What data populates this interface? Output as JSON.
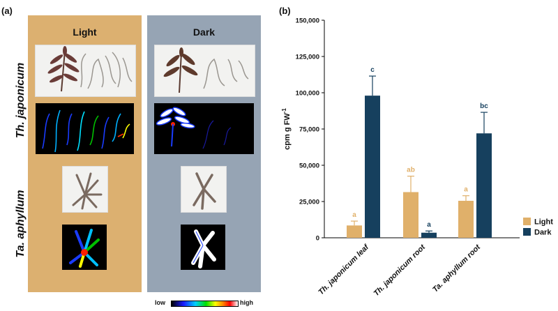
{
  "panel_a": {
    "label": "(a)",
    "columns": {
      "light": "Light",
      "dark": "Dark"
    },
    "species": [
      "Th. japonicum",
      "Ta. aphyllum"
    ],
    "scale": {
      "low": "low",
      "high": "high"
    },
    "colors": {
      "light_bg": "#dcb070",
      "dark_bg": "#96a4b4"
    }
  },
  "panel_b": {
    "label": "(b)"
  },
  "chart_data": {
    "type": "bar",
    "title": "",
    "ylabel": "cpm g FW",
    "ylabel_sup": "-1",
    "ylim": [
      0,
      150000
    ],
    "yticks": [
      "0",
      "25,000",
      "50,000",
      "75,000",
      "100,000",
      "125,000",
      "150,000"
    ],
    "categories": [
      "Th. japonicum leaf",
      "Th. japonicum root",
      "Ta. aphyllum root"
    ],
    "series": [
      {
        "name": "Light",
        "color": "#e0b06a",
        "values": [
          8500,
          31500,
          25500
        ],
        "errors": [
          3000,
          11000,
          3500
        ],
        "letters": [
          "a",
          "ab",
          "a"
        ]
      },
      {
        "name": "Dark",
        "color": "#16405e",
        "values": [
          98000,
          3500,
          72000
        ],
        "errors": [
          13500,
          1200,
          14500
        ],
        "letters": [
          "c",
          "a",
          "bc"
        ]
      }
    ],
    "legend_position": "right"
  }
}
